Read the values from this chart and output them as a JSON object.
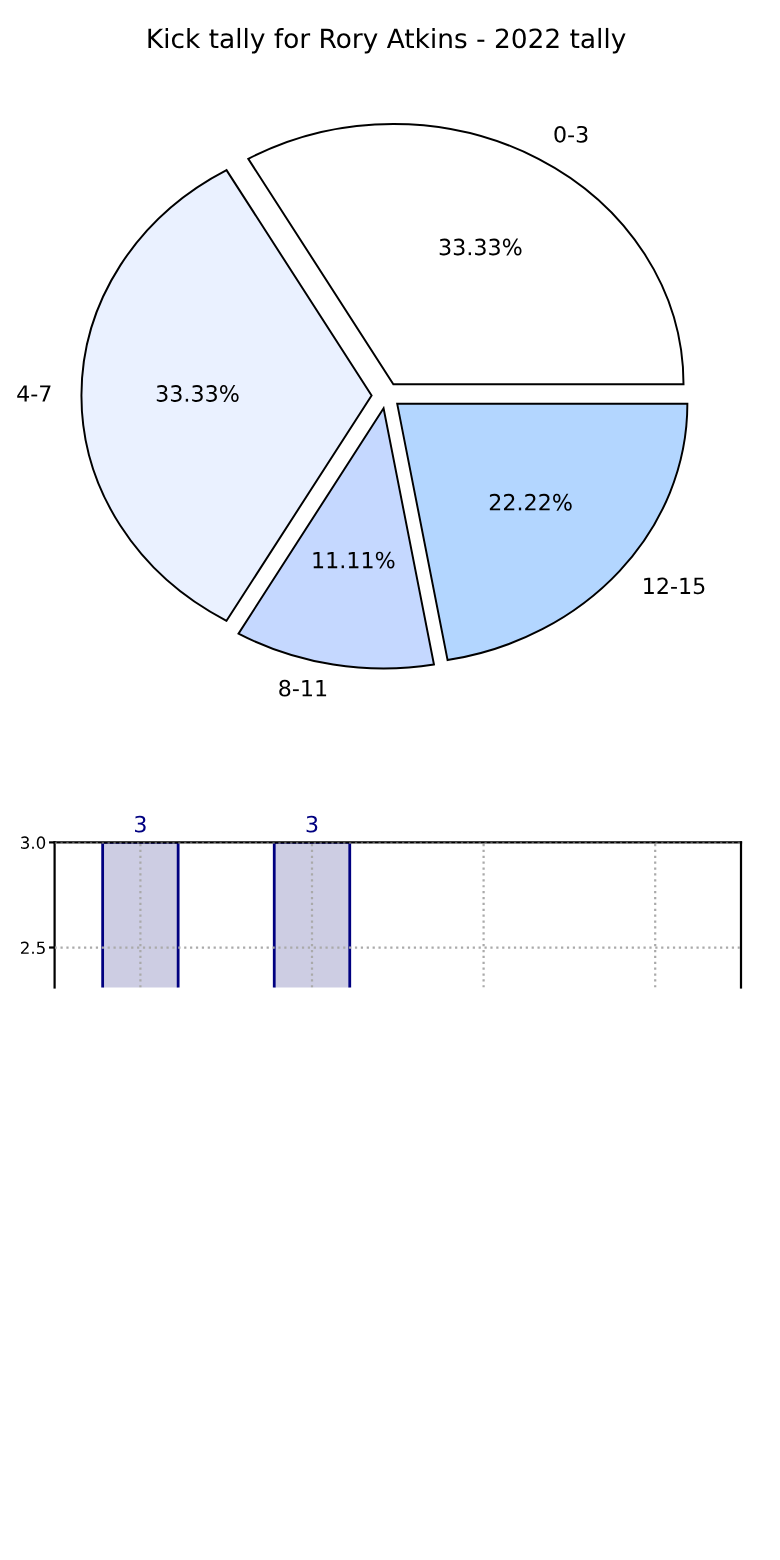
{
  "chart_data": [
    {
      "type": "pie",
      "title": "Kick tally for Rory Atkins - 2022 tally",
      "categories": [
        "0-3",
        "4-7",
        "8-11",
        "12-15"
      ],
      "values": [
        33.33,
        33.33,
        11.11,
        22.22
      ],
      "value_labels": [
        "33.33%",
        "33.33%",
        "11.11%",
        "22.22%"
      ],
      "colors": [
        "#ffffff",
        "#eaf1ff",
        "#c5d8ff",
        "#b3d6ff"
      ]
    },
    {
      "type": "bar",
      "categories": [
        null,
        null,
        null,
        null
      ],
      "series": [
        {
          "color": "#cdcde3",
          "values": [
            3,
            3,
            null,
            null
          ]
        }
      ],
      "data_labels": true,
      "ylim": [
        2.31,
        3.0
      ],
      "yticks": [
        {
          "value": 2.5,
          "label": "2.5"
        },
        {
          "value": 3.0,
          "label": "3.0"
        }
      ],
      "grid": true
    }
  ]
}
